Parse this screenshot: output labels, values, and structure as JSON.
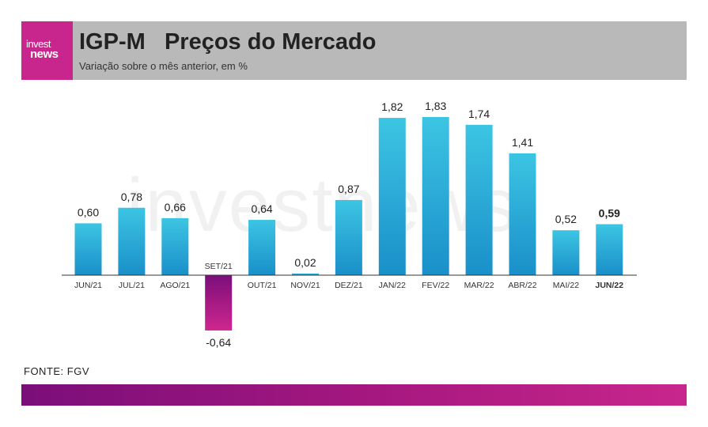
{
  "brand": {
    "logo_line1": "invest",
    "logo_line2": "news",
    "watermark": "investnews"
  },
  "header": {
    "title": "IGP-M   Preços do Mercado",
    "subtitle": "Variação sobre o mês anterior, em %"
  },
  "source": "FONTE: FGV",
  "chart_data": {
    "type": "bar",
    "title": "IGP-M   Preços do Mercado",
    "subtitle": "Variação sobre o mês anterior, em %",
    "categories": [
      "JUN/21",
      "JUL/21",
      "AGO/21",
      "SET/21",
      "OUT/21",
      "NOV/21",
      "DEZ/21",
      "JAN/22",
      "FEV/22",
      "MAR/22",
      "ABR/22",
      "MAI/22",
      "JUN/22"
    ],
    "values": [
      0.6,
      0.78,
      0.66,
      -0.64,
      0.64,
      0.02,
      0.87,
      1.82,
      1.83,
      1.74,
      1.41,
      0.52,
      0.59
    ],
    "value_labels": [
      "0,60",
      "0,78",
      "0,66",
      "-0,64",
      "0,64",
      "0,02",
      "0,87",
      "1,82",
      "1,83",
      "1,74",
      "1,41",
      "0,52",
      "0,59"
    ],
    "highlight_index": 12,
    "ylim": [
      -0.64,
      1.83
    ],
    "grid": false,
    "colors": {
      "positive_top": "#3cc5e3",
      "positive_bottom": "#1a8fc9",
      "negative_top": "#7b0e7a",
      "negative_bottom": "#d0268f",
      "baseline": "#333333"
    }
  }
}
